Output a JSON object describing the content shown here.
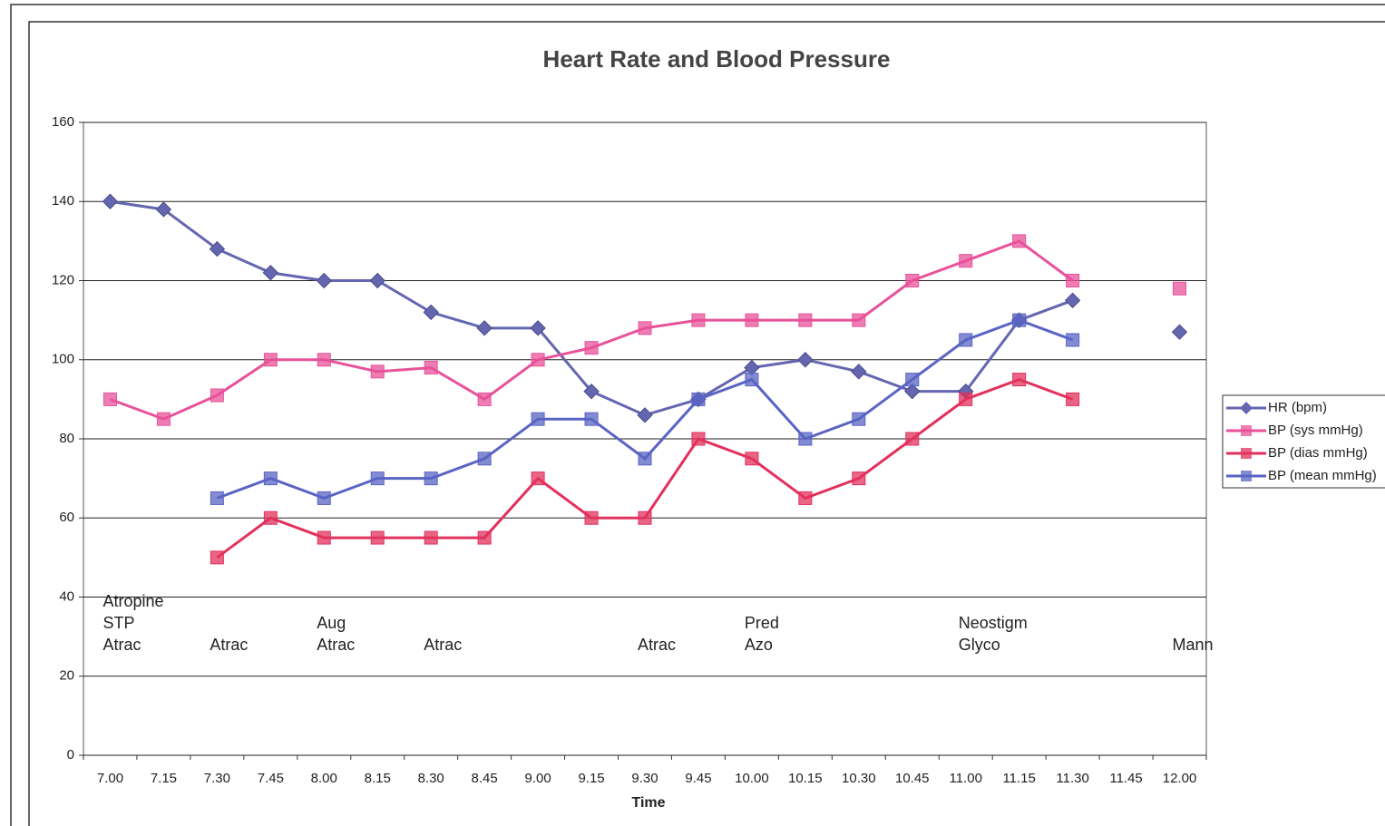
{
  "chart_data": {
    "type": "line",
    "title": "Heart Rate and Blood Pressure",
    "x_label": "Time",
    "categories": [
      "7.00",
      "7.15",
      "7.30",
      "7.45",
      "8.00",
      "8.15",
      "8.30",
      "8.45",
      "9.00",
      "9.15",
      "9.30",
      "9.45",
      "10.00",
      "10.15",
      "10.30",
      "10.45",
      "11.00",
      "11.15",
      "11.30",
      "11.45",
      "12.00"
    ],
    "series": [
      {
        "name": "HR (bpm)",
        "color": "#6466b0",
        "marker": "diamond",
        "values": [
          140,
          138,
          128,
          122,
          120,
          120,
          112,
          108,
          108,
          92,
          86,
          90,
          98,
          100,
          97,
          92,
          92,
          110,
          115,
          null,
          107
        ]
      },
      {
        "name": "BP (sys mmHg)",
        "color": "#e8529a",
        "marker": "square",
        "values": [
          90,
          85,
          91,
          100,
          100,
          97,
          98,
          90,
          100,
          103,
          108,
          110,
          110,
          110,
          110,
          120,
          125,
          130,
          120,
          null,
          118
        ]
      },
      {
        "name": "BP (dias mmHg)",
        "color": "#e2315c",
        "marker": "square",
        "values": [
          null,
          null,
          50,
          60,
          55,
          55,
          55,
          55,
          70,
          60,
          60,
          80,
          75,
          65,
          70,
          80,
          90,
          95,
          90,
          null,
          null
        ]
      },
      {
        "name": "BP (mean mmHg)",
        "color": "#5a64c4",
        "marker": "square",
        "values": [
          null,
          null,
          65,
          70,
          65,
          70,
          70,
          75,
          85,
          85,
          75,
          90,
          95,
          80,
          85,
          95,
          105,
          110,
          105,
          null,
          null
        ]
      }
    ],
    "annotations": [
      {
        "x": "7.00",
        "lines": [
          "Atropine",
          "STP",
          "Atrac"
        ]
      },
      {
        "x": "7.30",
        "lines": [
          "Atrac"
        ]
      },
      {
        "x": "8.00",
        "lines": [
          "Aug",
          "Atrac"
        ]
      },
      {
        "x": "8.30",
        "lines": [
          "Atrac"
        ]
      },
      {
        "x": "9.30",
        "lines": [
          "Atrac"
        ]
      },
      {
        "x": "10.00",
        "lines": [
          "Pred",
          "Azo"
        ]
      },
      {
        "x": "11.00",
        "lines": [
          "Neostigm",
          "Glyco"
        ]
      },
      {
        "x": "12.00",
        "lines": [
          "Mann"
        ]
      }
    ],
    "ylim": [
      0,
      160
    ],
    "yticks": [
      0,
      20,
      40,
      60,
      80,
      100,
      120,
      140,
      160
    ],
    "grid": true,
    "legend": "right"
  }
}
